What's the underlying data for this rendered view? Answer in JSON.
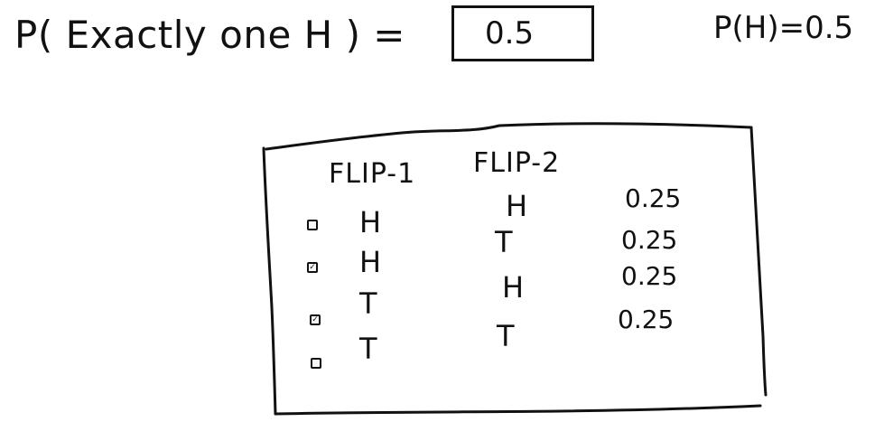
{
  "header": {
    "equation_left": "P( Exactly one H )  =",
    "answer_value": "0.5",
    "given": "P(H)=0.5"
  },
  "table": {
    "columns": [
      "FLIP-1",
      "FLIP-2"
    ],
    "rows": [
      {
        "flip1": "H",
        "flip2": "H",
        "probability": "0.25",
        "checked": false
      },
      {
        "flip1": "H",
        "flip2": "T",
        "probability": "0.25",
        "checked": true
      },
      {
        "flip1": "T",
        "flip2": "H",
        "probability": "0.25",
        "checked": true
      },
      {
        "flip1": "T",
        "flip2": "T",
        "probability": "0.25",
        "checked": false
      }
    ]
  },
  "colors": {
    "ink": "#111111",
    "background": "#ffffff"
  },
  "icons": {
    "checked_box": "checked-box-icon",
    "unchecked_box": "unchecked-box-icon"
  }
}
